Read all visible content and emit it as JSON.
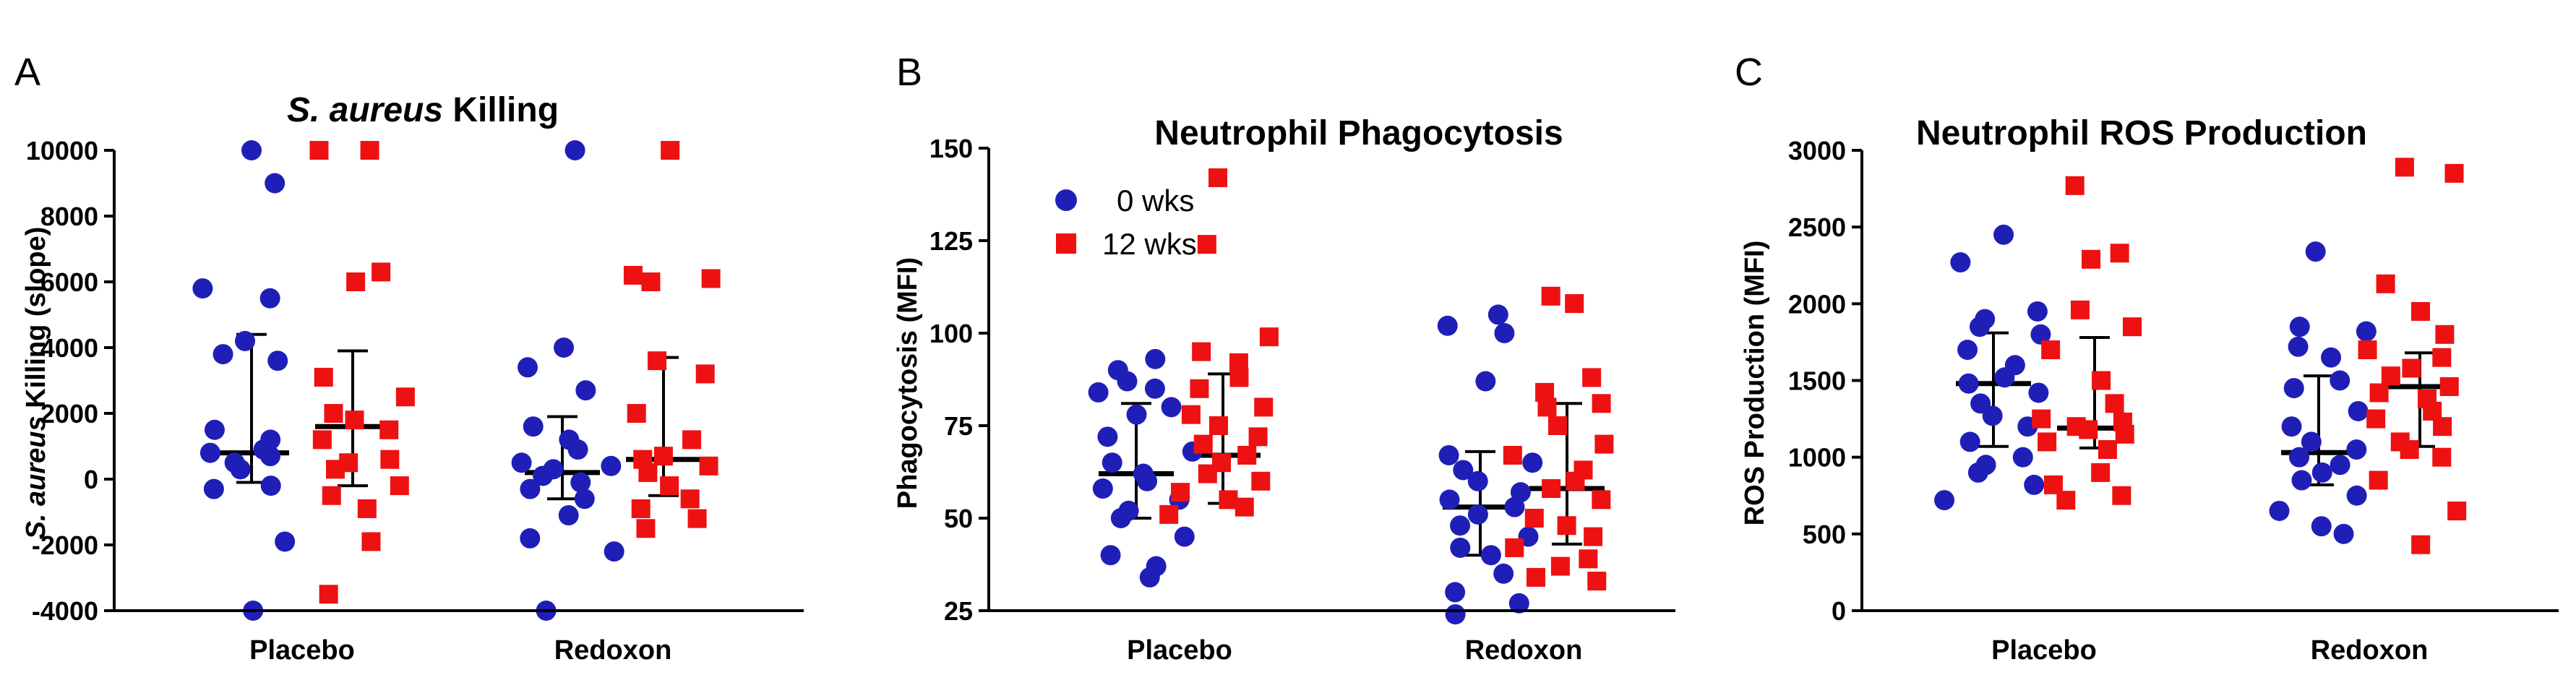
{
  "colors": {
    "week0": "#1f1fb8",
    "week12": "#ee1111",
    "axis": "#000000"
  },
  "legend": {
    "items": [
      {
        "label": "0 wks",
        "shape": "circle",
        "color": "#1f1fb8"
      },
      {
        "label": "12 wks",
        "shape": "square",
        "color": "#ee1111"
      }
    ]
  },
  "chart_data": [
    {
      "panel": "A",
      "type": "scatter",
      "title_italic": "S. aureus",
      "title_rest": " Killing",
      "ylabel_italic": "S. aureus",
      "ylabel_rest": " Killing (slope)",
      "ylim": [
        -4000,
        10000
      ],
      "yticks": [
        -4000,
        -2000,
        0,
        2000,
        4000,
        6000,
        8000,
        10000
      ],
      "categories": [
        "Placebo",
        "Redoxon"
      ],
      "series": [
        {
          "name": "0 wks",
          "group": "Placebo",
          "values": [
            10000,
            9000,
            5800,
            5500,
            4200,
            3800,
            3600,
            1500,
            1200,
            900,
            800,
            700,
            500,
            300,
            -200,
            -300,
            -1900,
            -4000
          ],
          "median": 800,
          "q1": -100,
          "q3": 4400
        },
        {
          "name": "12 wks",
          "group": "Placebo",
          "values": [
            10000,
            10000,
            6300,
            6000,
            3100,
            2500,
            2000,
            1800,
            1500,
            1200,
            600,
            500,
            300,
            -200,
            -500,
            -900,
            -1900,
            -3500
          ],
          "median": 1600,
          "q1": -200,
          "q3": 3900
        },
        {
          "name": "0 wks",
          "group": "Redoxon",
          "values": [
            10000,
            4000,
            3400,
            2700,
            1600,
            1200,
            900,
            500,
            400,
            300,
            100,
            -100,
            -300,
            -600,
            -1100,
            -1800,
            -2200,
            -4000
          ],
          "median": 200,
          "q1": -600,
          "q3": 1900
        },
        {
          "name": "12 wks",
          "group": "Redoxon",
          "values": [
            10000,
            6200,
            6100,
            6000,
            3600,
            3200,
            2000,
            1200,
            700,
            600,
            400,
            200,
            -200,
            -600,
            -900,
            -1200,
            -1500
          ],
          "median": 600,
          "q1": -500,
          "q3": 3700
        }
      ]
    },
    {
      "panel": "B",
      "type": "scatter",
      "title": "Neutrophil Phagocytosis",
      "ylabel": "Phagocytosis  (MFI)",
      "ylim": [
        25,
        150
      ],
      "yticks": [
        25,
        50,
        75,
        100,
        125,
        150
      ],
      "categories": [
        "Placebo",
        "Redoxon"
      ],
      "show_legend": true,
      "series": [
        {
          "name": "0 wks",
          "group": "Placebo",
          "values": [
            93,
            90,
            87,
            85,
            84,
            80,
            78,
            72,
            68,
            65,
            62,
            60,
            58,
            55,
            52,
            50,
            45,
            40,
            37,
            34
          ],
          "median": 62,
          "q1": 50,
          "q3": 81
        },
        {
          "name": "12 wks",
          "group": "Placebo",
          "values": [
            142,
            124,
            99,
            95,
            92,
            88,
            85,
            80,
            78,
            75,
            72,
            70,
            67,
            65,
            62,
            60,
            57,
            55,
            53,
            51
          ],
          "median": 67,
          "q1": 54,
          "q3": 89
        },
        {
          "name": "0 wks",
          "group": "Redoxon",
          "values": [
            105,
            102,
            100,
            87,
            67,
            65,
            63,
            60,
            57,
            55,
            53,
            51,
            48,
            45,
            42,
            40,
            35,
            30,
            27,
            24
          ],
          "median": 53,
          "q1": 40,
          "q3": 68
        },
        {
          "name": "12 wks",
          "group": "Redoxon",
          "values": [
            110,
            108,
            88,
            84,
            81,
            80,
            75,
            70,
            67,
            63,
            60,
            58,
            55,
            50,
            48,
            45,
            42,
            39,
            37,
            34,
            33
          ],
          "median": 58,
          "q1": 43,
          "q3": 81
        }
      ]
    },
    {
      "panel": "C",
      "type": "scatter",
      "title": "Neutrophil ROS Production",
      "ylabel": "ROS Production  (MFI)",
      "ylim": [
        0,
        3000
      ],
      "yticks": [
        0,
        500,
        1000,
        1500,
        2000,
        2500,
        3000
      ],
      "categories": [
        "Placebo",
        "Redoxon"
      ],
      "series": [
        {
          "name": "0 wks",
          "group": "Placebo",
          "values": [
            2450,
            2270,
            1950,
            1900,
            1850,
            1800,
            1700,
            1600,
            1520,
            1480,
            1420,
            1350,
            1270,
            1200,
            1100,
            1000,
            950,
            900,
            820,
            720
          ],
          "median": 1480,
          "q1": 1070,
          "q3": 1810
        },
        {
          "name": "12 wks",
          "group": "Placebo",
          "values": [
            2770,
            2330,
            2290,
            1960,
            1850,
            1700,
            1500,
            1350,
            1250,
            1230,
            1200,
            1180,
            1150,
            1100,
            1050,
            900,
            820,
            750,
            720
          ],
          "median": 1190,
          "q1": 1060,
          "q3": 1780
        },
        {
          "name": "0 wks",
          "group": "Redoxon",
          "values": [
            2340,
            1850,
            1820,
            1720,
            1650,
            1500,
            1450,
            1300,
            1200,
            1100,
            1050,
            1000,
            950,
            900,
            850,
            750,
            650,
            550,
            500
          ],
          "median": 1030,
          "q1": 820,
          "q3": 1530
        },
        {
          "name": "12 wks",
          "group": "Redoxon",
          "values": [
            2890,
            2850,
            2130,
            1950,
            1800,
            1700,
            1650,
            1580,
            1530,
            1460,
            1420,
            1380,
            1300,
            1250,
            1200,
            1100,
            1050,
            1000,
            850,
            650,
            430
          ],
          "median": 1460,
          "q1": 1070,
          "q3": 1680
        }
      ]
    }
  ]
}
